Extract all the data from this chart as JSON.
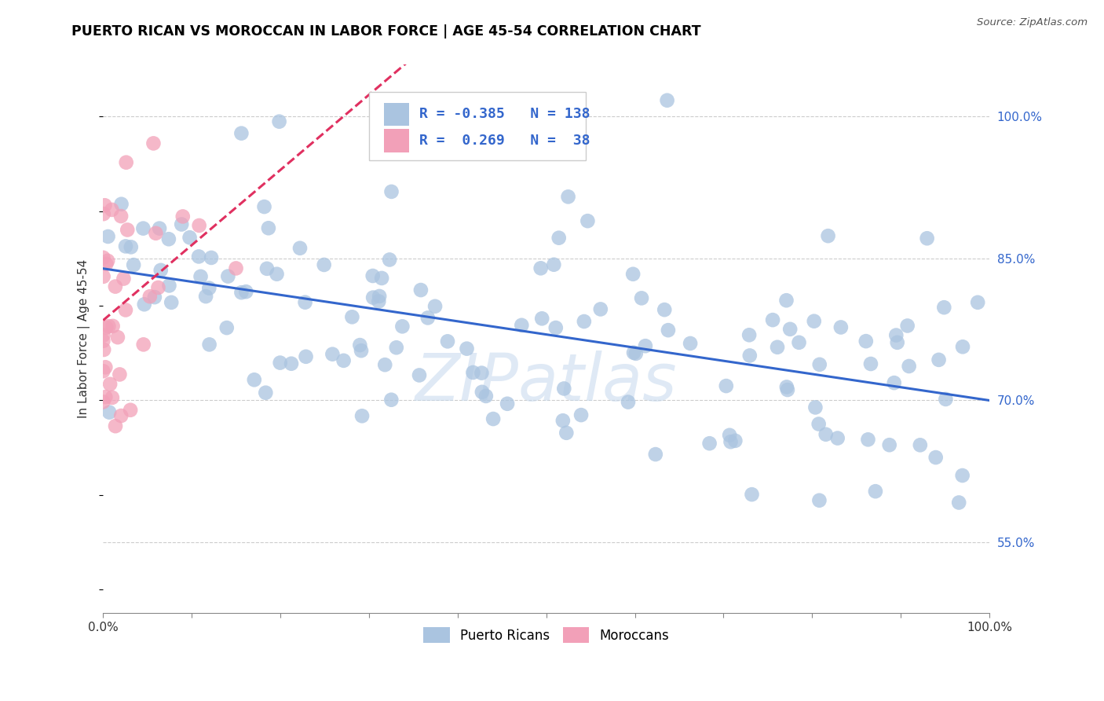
{
  "title": "PUERTO RICAN VS MOROCCAN IN LABOR FORCE | AGE 45-54 CORRELATION CHART",
  "source_text": "Source: ZipAtlas.com",
  "ylabel": "In Labor Force | Age 45-54",
  "xlim": [
    0.0,
    1.0
  ],
  "ylim": [
    0.475,
    1.055
  ],
  "yticks": [
    0.55,
    0.7,
    0.85,
    1.0
  ],
  "ytick_labels": [
    "55.0%",
    "70.0%",
    "85.0%",
    "100.0%"
  ],
  "blue_R": -0.385,
  "blue_N": 138,
  "pink_R": 0.269,
  "pink_N": 38,
  "blue_color": "#aac4e0",
  "pink_color": "#f2a0b8",
  "blue_line_color": "#3366cc",
  "pink_line_color": "#e03060",
  "watermark": "ZIPatlas",
  "legend_label_blue": "Puerto Ricans",
  "legend_label_pink": "Moroccans",
  "blue_seed": 42,
  "pink_seed": 7
}
